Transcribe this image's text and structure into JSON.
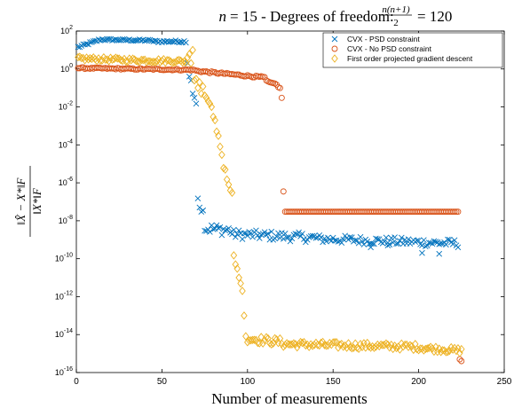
{
  "chart_data": {
    "type": "scatter",
    "title": "n = 15 - Degrees of freedom: n(n+1)/2 = 120",
    "xlabel": "Number of measurements",
    "ylabel": "‖X̂ − X*‖F / ‖X*‖F",
    "xlim": [
      0,
      250
    ],
    "ylim": [
      1e-16,
      100
    ],
    "yscale": "log",
    "grid": false,
    "legend_position": "top-right",
    "x_ticks": [
      0,
      50,
      100,
      150,
      200,
      250
    ],
    "x_tick_labels": [
      "0",
      "50",
      "100",
      "150",
      "200",
      "250"
    ],
    "y_tick_exponents": [
      2,
      0,
      -2,
      -4,
      -6,
      -8,
      -10,
      -12,
      -14,
      -16
    ],
    "series": [
      {
        "name": "CVX - PSD constraint",
        "marker": "x",
        "color": "#0072bd",
        "segments": [
          {
            "x0": 1,
            "x1": 14,
            "logy0": 1.15,
            "logy1": 1.55,
            "noise": 0.06
          },
          {
            "x0": 15,
            "x1": 44,
            "logy0": 1.55,
            "logy1": 1.5,
            "noise": 0.05
          },
          {
            "x0": 45,
            "x1": 64,
            "logy0": 1.45,
            "logy1": 1.45,
            "noise": 0.06
          }
        ],
        "points": [
          {
            "x": 65,
            "y": 2.0
          },
          {
            "x": 66,
            "y": 0.4
          },
          {
            "x": 67,
            "y": 0.25
          },
          {
            "x": 68,
            "y": 0.05
          },
          {
            "x": 69,
            "y": 0.03
          },
          {
            "x": 70,
            "y": 0.015
          },
          {
            "x": 71,
            "y": 1.5e-07
          },
          {
            "x": 72,
            "y": 5e-08
          },
          {
            "x": 73,
            "y": 3e-08
          },
          {
            "x": 74,
            "y": 3.5e-08
          }
        ],
        "tail_segments": [
          {
            "x0": 75,
            "x1": 90,
            "logy0": -8.4,
            "logy1": -8.5,
            "noise": 0.3
          },
          {
            "x0": 91,
            "x1": 140,
            "logy0": -8.7,
            "logy1": -8.9,
            "noise": 0.25
          },
          {
            "x0": 141,
            "x1": 223,
            "logy0": -8.95,
            "logy1": -9.2,
            "noise": 0.22
          }
        ],
        "outliers": [
          {
            "x": 172,
            "y": 4e-10
          },
          {
            "x": 182,
            "y": 5e-10
          },
          {
            "x": 202,
            "y": 2e-10
          },
          {
            "x": 212,
            "y": 1.8e-10
          }
        ]
      },
      {
        "name": "CVX - No PSD constraint",
        "marker": "o",
        "color": "#d95319",
        "segments": [
          {
            "x0": 1,
            "x1": 69,
            "logy0": 0.05,
            "logy1": -0.05,
            "noise": 0.04
          },
          {
            "x0": 70,
            "x1": 110,
            "logy0": -0.1,
            "logy1": -0.45,
            "noise": 0.05
          }
        ],
        "points": [
          {
            "x": 111,
            "y": 0.25
          },
          {
            "x": 112,
            "y": 0.22
          },
          {
            "x": 113,
            "y": 0.2
          },
          {
            "x": 114,
            "y": 0.19
          },
          {
            "x": 115,
            "y": 0.18
          },
          {
            "x": 116,
            "y": 0.17
          },
          {
            "x": 117,
            "y": 0.15
          },
          {
            "x": 118,
            "y": 0.11
          },
          {
            "x": 119,
            "y": 0.1
          },
          {
            "x": 120,
            "y": 0.03
          },
          {
            "x": 121,
            "y": 3.5e-07
          },
          {
            "x": 224,
            "y": 5e-16
          },
          {
            "x": 225,
            "y": 4e-16
          }
        ],
        "flat": {
          "x0": 122,
          "x1": 223,
          "y": 3e-08
        }
      },
      {
        "name": "First order projected gradient descent",
        "marker": "diamond",
        "color": "#edb120",
        "segments": [
          {
            "x0": 1,
            "x1": 64,
            "logy0": 0.55,
            "logy1": 0.4,
            "noise": 0.1
          }
        ],
        "points": [
          {
            "x": 65,
            "y": 4
          },
          {
            "x": 66,
            "y": 6
          },
          {
            "x": 67,
            "y": 2
          },
          {
            "x": 68,
            "y": 10
          },
          {
            "x": 69,
            "y": 0.25
          },
          {
            "x": 70,
            "y": 0.3
          },
          {
            "x": 71,
            "y": 0.1
          },
          {
            "x": 72,
            "y": 0.2
          },
          {
            "x": 73,
            "y": 0.05
          },
          {
            "x": 74,
            "y": 0.12
          },
          {
            "x": 75,
            "y": 0.04
          },
          {
            "x": 76,
            "y": 0.03
          },
          {
            "x": 77,
            "y": 0.02
          },
          {
            "x": 78,
            "y": 0.015
          },
          {
            "x": 79,
            "y": 0.01
          },
          {
            "x": 80,
            "y": 0.003
          },
          {
            "x": 81,
            "y": 0.002
          },
          {
            "x": 82,
            "y": 0.0005
          },
          {
            "x": 83,
            "y": 0.0003
          },
          {
            "x": 84,
            "y": 8e-05
          },
          {
            "x": 85,
            "y": 3e-05
          },
          {
            "x": 86,
            "y": 6e-06
          },
          {
            "x": 87,
            "y": 5e-06
          },
          {
            "x": 88,
            "y": 1.5e-06
          },
          {
            "x": 89,
            "y": 8e-07
          },
          {
            "x": 90,
            "y": 4e-07
          },
          {
            "x": 91,
            "y": 3e-07
          },
          {
            "x": 92,
            "y": 1.5e-10
          },
          {
            "x": 93,
            "y": 5e-11
          },
          {
            "x": 94,
            "y": 3e-11
          },
          {
            "x": 95,
            "y": 1e-11
          },
          {
            "x": 96,
            "y": 5e-12
          },
          {
            "x": 97,
            "y": 2e-12
          },
          {
            "x": 98,
            "y": 1e-13
          }
        ],
        "tail_segments": [
          {
            "x0": 99,
            "x1": 120,
            "logy0": -14.2,
            "logy1": -14.4,
            "noise": 0.2
          },
          {
            "x0": 121,
            "x1": 200,
            "logy0": -14.5,
            "logy1": -14.65,
            "noise": 0.17
          },
          {
            "x0": 201,
            "x1": 225,
            "logy0": -14.7,
            "logy1": -14.85,
            "noise": 0.15
          }
        ]
      }
    ]
  }
}
